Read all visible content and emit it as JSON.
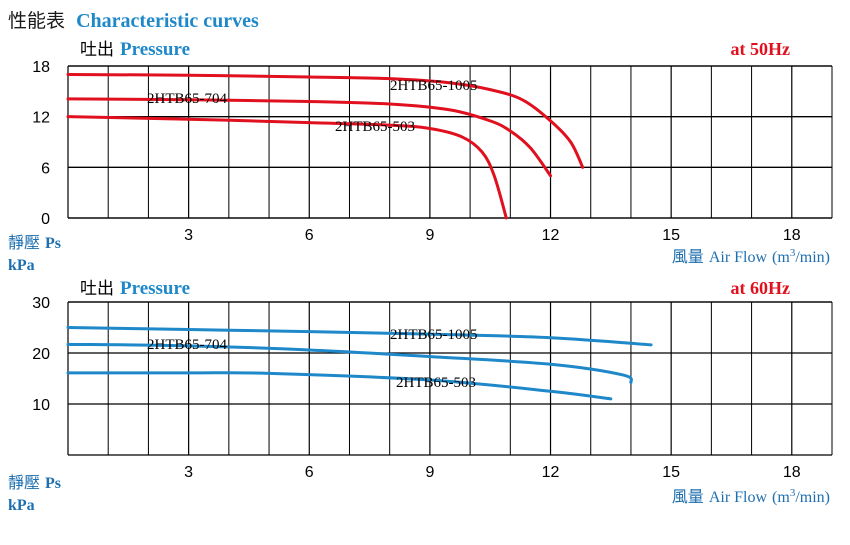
{
  "header": {
    "title_cjk": "性能表",
    "title_en": "Characteristic curves"
  },
  "chart_data": [
    {
      "type": "line",
      "title_cjk": "吐出",
      "title_en": "Pressure",
      "frequency": "at  50Hz",
      "ylabel_cjk": "靜壓",
      "ylabel_en": "Ps",
      "yunit": "kPa",
      "xlabel_cjk": "風量",
      "xlabel_en": "Air Flow",
      "xunit": "(m",
      "xunit_sup": "3",
      "xunit_tail": "/min)",
      "xlim": [
        0,
        19
      ],
      "ylim": [
        0,
        18
      ],
      "xticks": [
        3,
        6,
        9,
        12,
        15,
        18
      ],
      "yticks": [
        0,
        6,
        12,
        18
      ],
      "grid": true,
      "line_color": "#e0101e",
      "series": [
        {
          "name": "2HTB65-1005",
          "x": [
            0,
            3,
            6,
            8,
            9.5,
            10.5,
            11.3,
            12,
            12.5,
            12.8
          ],
          "y": [
            17,
            16.9,
            16.7,
            16.5,
            16,
            15.2,
            14,
            11.5,
            9,
            6
          ]
        },
        {
          "name": "2HTB65-704",
          "x": [
            0,
            3,
            6,
            8,
            9.5,
            10.5,
            11,
            11.5,
            12
          ],
          "y": [
            14.1,
            14,
            13.8,
            13.5,
            12.8,
            11.5,
            10.3,
            8.3,
            5
          ]
        },
        {
          "name": "2HTB65-503",
          "x": [
            0,
            3,
            6,
            8,
            9,
            9.8,
            10.3,
            10.6,
            10.9
          ],
          "y": [
            12,
            11.7,
            11.3,
            11,
            10.6,
            9.6,
            7.8,
            5,
            0
          ]
        }
      ]
    },
    {
      "type": "line",
      "title_cjk": "吐出",
      "title_en": "Pressure",
      "frequency": "at  60Hz",
      "ylabel_cjk": "靜壓",
      "ylabel_en": "Ps",
      "yunit": "kPa",
      "xlabel_cjk": "風量",
      "xlabel_en": "Air Flow",
      "xunit": "(m",
      "xunit_sup": "3",
      "xunit_tail": "/min)",
      "xlim": [
        0,
        19
      ],
      "ylim": [
        0,
        30
      ],
      "xticks": [
        3,
        6,
        9,
        12,
        15,
        18
      ],
      "yticks": [
        10,
        20,
        30
      ],
      "grid": true,
      "line_color": "#1e88c9",
      "series": [
        {
          "name": "2HTB65-1005",
          "x": [
            0,
            3,
            6,
            9,
            12,
            14.5
          ],
          "y": [
            25,
            24.6,
            24.2,
            23.7,
            23,
            21.6
          ]
        },
        {
          "name": "2HTB65-704",
          "x": [
            0,
            3,
            6,
            9,
            12,
            13.8,
            14
          ],
          "y": [
            21.7,
            21.4,
            20.6,
            19.3,
            17.8,
            15.7,
            14.2
          ]
        },
        {
          "name": "2HTB65-503",
          "x": [
            0,
            3,
            5,
            9,
            12,
            13.5
          ],
          "y": [
            16.1,
            16.1,
            16,
            14.7,
            12.5,
            11
          ]
        }
      ]
    }
  ]
}
